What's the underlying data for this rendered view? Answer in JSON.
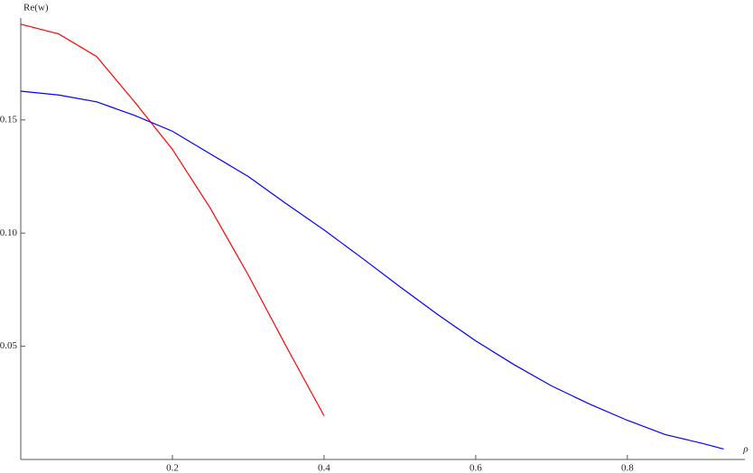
{
  "chart_data": {
    "type": "line",
    "y_label": "Re(w)",
    "x_label": "ρ",
    "xlim": [
      0,
      0.955
    ],
    "ylim": [
      0,
      0.195
    ],
    "xticks": [
      0.2,
      0.4,
      0.6,
      0.8
    ],
    "yticks": [
      0.05,
      {
        "value": 0.1,
        "label": "0.10"
      },
      0.15
    ],
    "series": [
      {
        "color": "#ff0000",
        "x": [
          0,
          0.05,
          0.1,
          0.15,
          0.2,
          0.25,
          0.3,
          0.35,
          0.4
        ],
        "values": [
          0.1923,
          0.188,
          0.178,
          0.158,
          0.137,
          0.111,
          0.0815,
          0.05,
          0.0193
        ]
      },
      {
        "color": "#0000ff",
        "x": [
          0,
          0.05,
          0.1,
          0.15,
          0.2,
          0.25,
          0.3,
          0.35,
          0.4,
          0.45,
          0.5,
          0.55,
          0.6,
          0.65,
          0.7,
          0.75,
          0.8,
          0.85,
          0.9,
          0.927
        ],
        "values": [
          0.1627,
          0.161,
          0.158,
          0.152,
          0.145,
          0.135,
          0.125,
          0.113,
          0.1014,
          0.089,
          0.0763,
          0.064,
          0.0524,
          0.042,
          0.0325,
          0.0245,
          0.0173,
          0.011,
          0.007,
          0.0046
        ]
      }
    ]
  }
}
